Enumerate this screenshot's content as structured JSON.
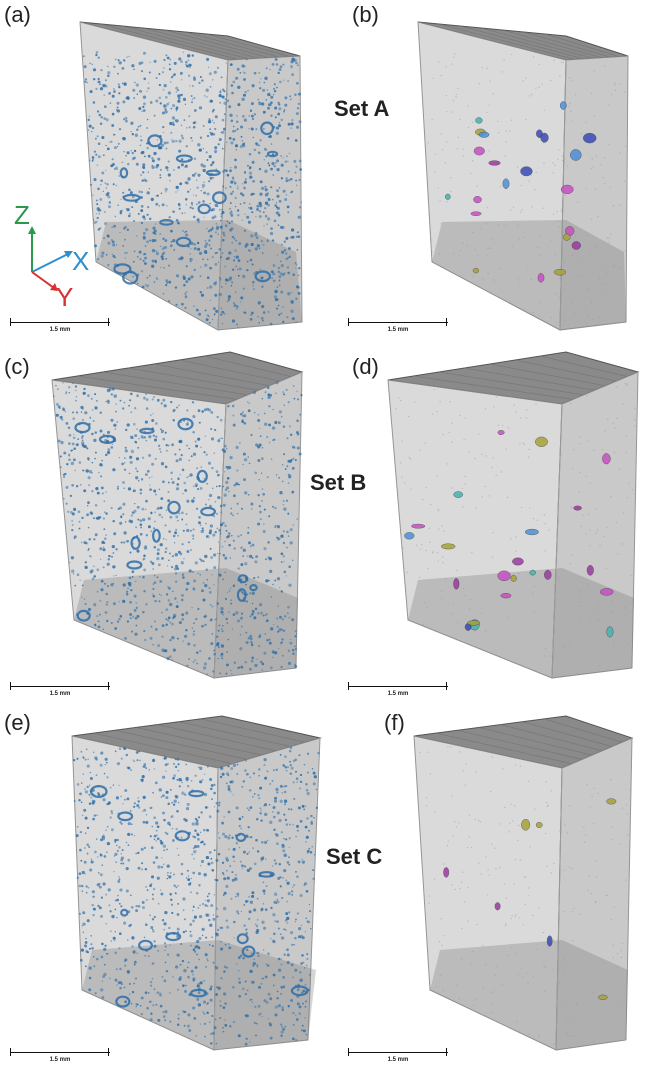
{
  "panels": [
    {
      "label": "(a)",
      "kind": "dense"
    },
    {
      "label": "(b)",
      "kind": "sparse"
    },
    {
      "label": "(c)",
      "kind": "dense"
    },
    {
      "label": "(d)",
      "kind": "sparse"
    },
    {
      "label": "(e)",
      "kind": "dense"
    },
    {
      "label": "(f)",
      "kind": "sparse"
    }
  ],
  "sets": [
    "Set A",
    "Set B",
    "Set C"
  ],
  "scale_bar": "1.5 mm",
  "axes": {
    "z": "Z",
    "x": "X",
    "y": "Y"
  },
  "colors": {
    "pore_blue": "#2f6fa8",
    "axis_z": "#2a9a4a",
    "axis_x": "#2d8fd0",
    "axis_y": "#d83030",
    "block_face": "#d6d6d6",
    "block_top": "#8a8a8a",
    "label_multi": [
      "#3a4bb8",
      "#c84fc4",
      "#a8a23a",
      "#46b3b0",
      "#9b3a9e",
      "#4c8fd6"
    ]
  }
}
